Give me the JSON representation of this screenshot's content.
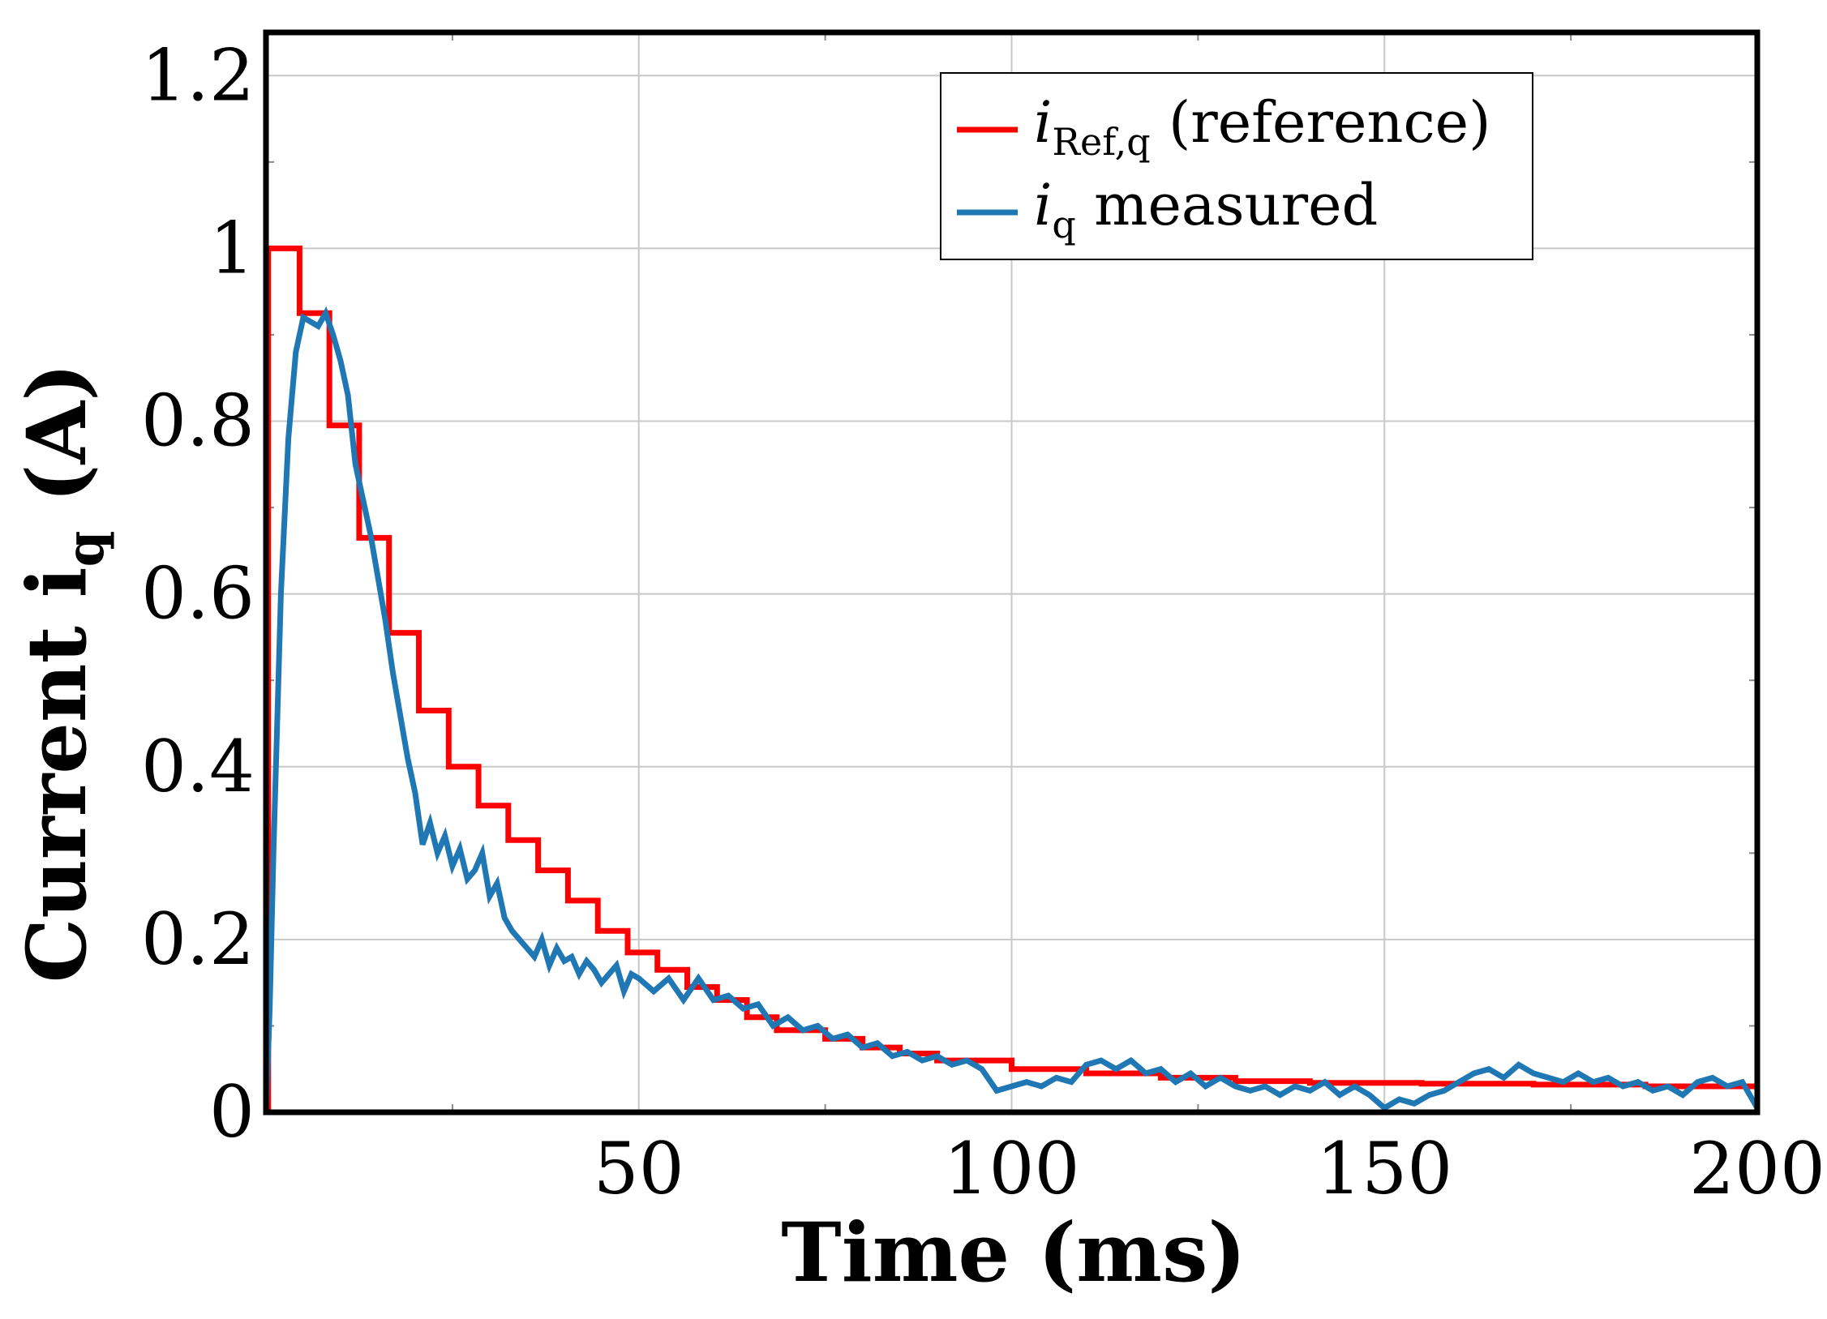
{
  "chart_data": {
    "type": "line",
    "title": "",
    "xlabel": "Time (ms)",
    "ylabel_main": "Current i",
    "ylabel_sub": "q",
    "ylabel_unit": " (A)",
    "xlim": [
      0,
      200
    ],
    "ylim": [
      0,
      1.25
    ],
    "x_ticks": [
      50,
      100,
      150,
      200
    ],
    "x_tick_labels": [
      "50",
      "100",
      "150",
      "200"
    ],
    "y_ticks": [
      0,
      0.2,
      0.4,
      0.6,
      0.8,
      1,
      1.2
    ],
    "y_tick_labels": [
      "0",
      "0.2",
      "0.4",
      "0.6",
      "0.8",
      "1",
      "1.2"
    ],
    "grid": true,
    "legend_position": "top-right",
    "series": [
      {
        "name": "i_Ref,q (reference)",
        "legend_main": "i",
        "legend_sub": "Ref,q",
        "legend_rest": " (reference)",
        "color": "#ff0000",
        "style": "step",
        "x": [
          0,
          0.3,
          0.3,
          4.5,
          4.5,
          8.5,
          8.5,
          12.5,
          12.5,
          16.5,
          16.5,
          20.5,
          20.5,
          24.5,
          24.5,
          28.5,
          28.5,
          32.5,
          32.5,
          36.5,
          36.5,
          40.5,
          40.5,
          44.5,
          44.5,
          48.5,
          48.5,
          52.5,
          52.5,
          56.5,
          56.5,
          60.5,
          60.5,
          64.5,
          64.5,
          68.5,
          68.5,
          75,
          75,
          80,
          80,
          85,
          85,
          90,
          90,
          100,
          100,
          110,
          110,
          120,
          120,
          130,
          130,
          140,
          140,
          155,
          155,
          170,
          170,
          185,
          185,
          200
        ],
        "y": [
          0,
          0,
          1.0,
          1.0,
          0.925,
          0.925,
          0.795,
          0.795,
          0.665,
          0.665,
          0.555,
          0.555,
          0.465,
          0.465,
          0.4,
          0.4,
          0.355,
          0.355,
          0.315,
          0.315,
          0.28,
          0.28,
          0.245,
          0.245,
          0.21,
          0.21,
          0.185,
          0.185,
          0.165,
          0.165,
          0.145,
          0.145,
          0.13,
          0.13,
          0.11,
          0.11,
          0.095,
          0.095,
          0.085,
          0.085,
          0.075,
          0.075,
          0.068,
          0.068,
          0.06,
          0.06,
          0.05,
          0.05,
          0.045,
          0.045,
          0.04,
          0.04,
          0.036,
          0.036,
          0.034,
          0.034,
          0.033,
          0.033,
          0.032,
          0.032,
          0.03,
          0.03
        ]
      },
      {
        "name": "i_q measured",
        "legend_main": "i",
        "legend_sub": "q",
        "legend_rest": " measured",
        "color": "#1f77b4",
        "style": "line",
        "x": [
          0,
          0.5,
          1,
          1.5,
          2,
          3,
          4,
          5,
          6,
          7,
          8,
          9,
          10,
          11,
          12,
          13,
          14,
          15,
          16,
          17,
          18,
          19,
          20,
          21,
          22,
          23,
          24,
          25,
          26,
          27,
          28,
          29,
          30,
          31,
          32,
          33,
          34,
          35,
          36,
          37,
          38,
          39,
          40,
          41,
          42,
          43,
          44,
          45,
          46,
          47,
          48,
          49,
          50,
          52,
          54,
          56,
          58,
          60,
          62,
          64,
          66,
          68,
          70,
          72,
          74,
          76,
          78,
          80,
          82,
          84,
          86,
          88,
          90,
          92,
          94,
          96,
          98,
          100,
          102,
          104,
          106,
          108,
          110,
          112,
          114,
          116,
          118,
          120,
          122,
          124,
          126,
          128,
          130,
          132,
          134,
          136,
          138,
          140,
          142,
          144,
          146,
          148,
          150,
          152,
          154,
          156,
          158,
          160,
          162,
          164,
          166,
          168,
          170,
          172,
          174,
          176,
          178,
          180,
          182,
          184,
          186,
          188,
          190,
          192,
          194,
          196,
          198,
          199,
          200
        ],
        "y": [
          0,
          0.12,
          0.3,
          0.45,
          0.6,
          0.78,
          0.88,
          0.92,
          0.915,
          0.91,
          0.925,
          0.9,
          0.87,
          0.83,
          0.75,
          0.71,
          0.67,
          0.62,
          0.57,
          0.51,
          0.46,
          0.41,
          0.37,
          0.31,
          0.335,
          0.3,
          0.32,
          0.285,
          0.305,
          0.27,
          0.28,
          0.3,
          0.25,
          0.265,
          0.225,
          0.21,
          0.2,
          0.19,
          0.18,
          0.2,
          0.17,
          0.19,
          0.175,
          0.18,
          0.16,
          0.175,
          0.165,
          0.15,
          0.16,
          0.17,
          0.14,
          0.16,
          0.155,
          0.14,
          0.155,
          0.13,
          0.155,
          0.13,
          0.135,
          0.12,
          0.125,
          0.1,
          0.11,
          0.095,
          0.1,
          0.085,
          0.09,
          0.075,
          0.08,
          0.065,
          0.07,
          0.06,
          0.065,
          0.055,
          0.06,
          0.05,
          0.025,
          0.03,
          0.035,
          0.03,
          0.04,
          0.035,
          0.055,
          0.06,
          0.05,
          0.06,
          0.045,
          0.05,
          0.035,
          0.045,
          0.03,
          0.04,
          0.03,
          0.025,
          0.03,
          0.02,
          0.03,
          0.025,
          0.035,
          0.02,
          0.03,
          0.02,
          0.005,
          0.015,
          0.01,
          0.02,
          0.025,
          0.035,
          0.045,
          0.05,
          0.04,
          0.055,
          0.045,
          0.04,
          0.035,
          0.045,
          0.035,
          0.04,
          0.03,
          0.035,
          0.025,
          0.03,
          0.02,
          0.035,
          0.04,
          0.03,
          0.035,
          0.02,
          0.005
        ]
      }
    ]
  }
}
